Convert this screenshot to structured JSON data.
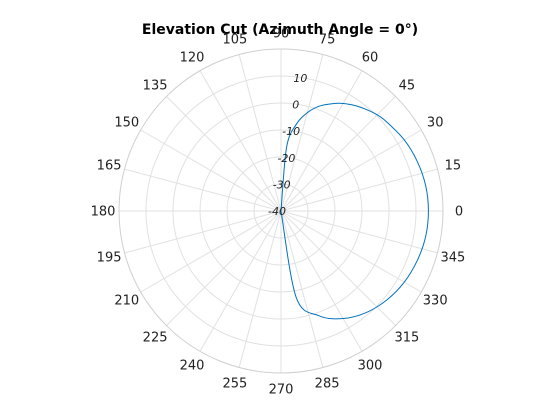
{
  "chart_data": {
    "type": "line",
    "subtype": "polar",
    "title": "Elevation Cut (Azimuth Angle = 0",
    "title_suffix": "°)",
    "theta_unit": "deg",
    "theta_zero_location": "right",
    "theta_direction": "counterclockwise",
    "theta_ticks": [
      0,
      15,
      30,
      45,
      60,
      75,
      90,
      105,
      120,
      135,
      150,
      165,
      180,
      195,
      210,
      225,
      240,
      255,
      270,
      285,
      300,
      315,
      330,
      345
    ],
    "theta_tick_labels": [
      "0",
      "15",
      "30",
      "45",
      "60",
      "75",
      "90",
      "105",
      "120",
      "135",
      "150",
      "165",
      "180",
      "195",
      "210",
      "225",
      "240",
      "255",
      "270",
      "285",
      "300",
      "315",
      "330",
      "345"
    ],
    "r_ticks": [
      -40,
      -30,
      -20,
      -10,
      0,
      10
    ],
    "r_tick_labels": [
      "-40",
      "-30",
      "-20",
      "-10",
      "0",
      "10"
    ],
    "r_label_angle_deg": 80,
    "rlim": [
      -40,
      20
    ],
    "grid": true,
    "series": [
      {
        "color": "#0072bd",
        "theta": [
          -90,
          -80,
          -70,
          -60,
          -50,
          -40,
          -30,
          -20,
          -10,
          0,
          10,
          20,
          30,
          40,
          45,
          50,
          55,
          60,
          65,
          70,
          75,
          80,
          85,
          90
        ],
        "r": [
          -40.0,
          -7.4,
          1.3,
          6.0,
          9.1,
          11.2,
          12.7,
          13.7,
          14.4,
          14.6,
          14.4,
          13.7,
          12.7,
          11.2,
          10.4,
          9.1,
          7.7,
          6.0,
          3.8,
          1.3,
          -2.3,
          -7.4,
          -16.3,
          -40.0
        ]
      }
    ]
  }
}
